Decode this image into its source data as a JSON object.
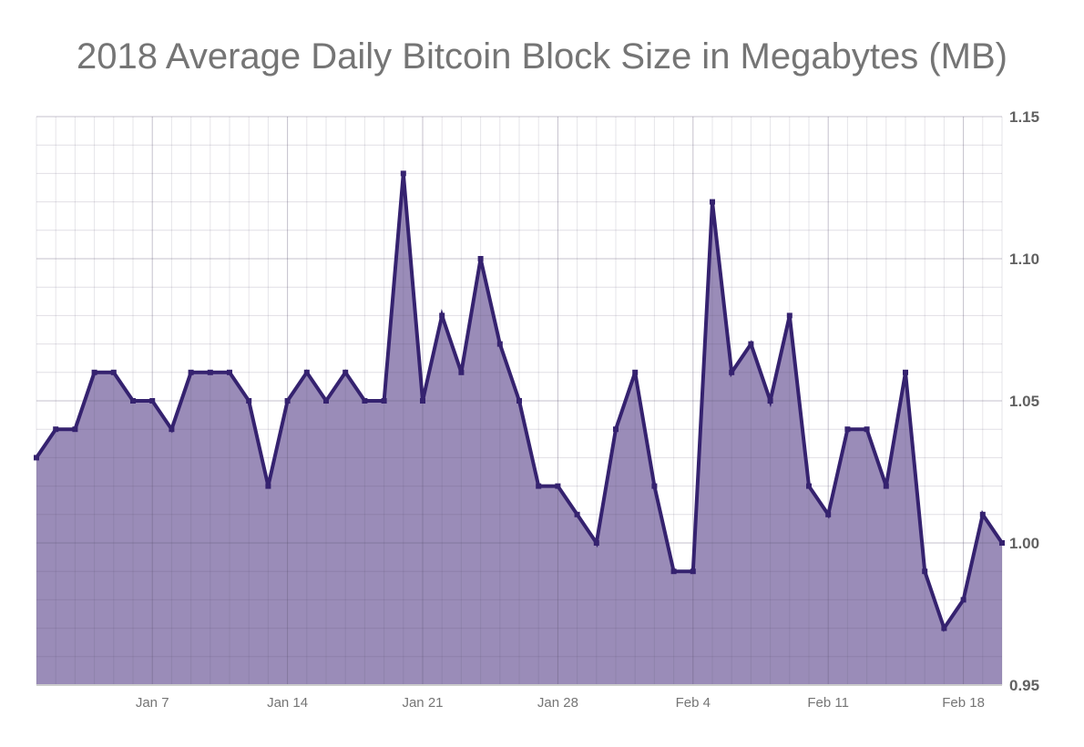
{
  "chart_data": {
    "type": "area",
    "title": "2018 Average Daily Bitcoin Block Size in Megabytes (MB)",
    "xlabel": "",
    "ylabel": "",
    "x_start": "2018-01-01",
    "x_end": "2018-02-20",
    "x_ticks": [
      "Jan 7",
      "Jan 14",
      "Jan 21",
      "Jan 28",
      "Feb 4",
      "Feb 11",
      "Feb 18"
    ],
    "y_ticks": [
      "0.95",
      "1.00",
      "1.05",
      "1.10",
      "1.15"
    ],
    "ylim": [
      0.95,
      1.15
    ],
    "y_axis_side": "right",
    "grid": true,
    "colors": {
      "line": "#35226f",
      "fill": "#9a8cb8"
    },
    "values": [
      1.03,
      1.04,
      1.04,
      1.06,
      1.06,
      1.05,
      1.05,
      1.04,
      1.06,
      1.06,
      1.06,
      1.05,
      1.02,
      1.05,
      1.06,
      1.05,
      1.06,
      1.05,
      1.05,
      1.13,
      1.05,
      1.08,
      1.06,
      1.1,
      1.07,
      1.05,
      1.02,
      1.02,
      1.01,
      1.0,
      1.04,
      1.06,
      1.02,
      0.99,
      0.99,
      1.12,
      1.06,
      1.07,
      1.05,
      1.08,
      1.02,
      1.01,
      1.04,
      1.04,
      1.02,
      1.06,
      0.99,
      0.97,
      0.98,
      1.01,
      1.0
    ]
  }
}
